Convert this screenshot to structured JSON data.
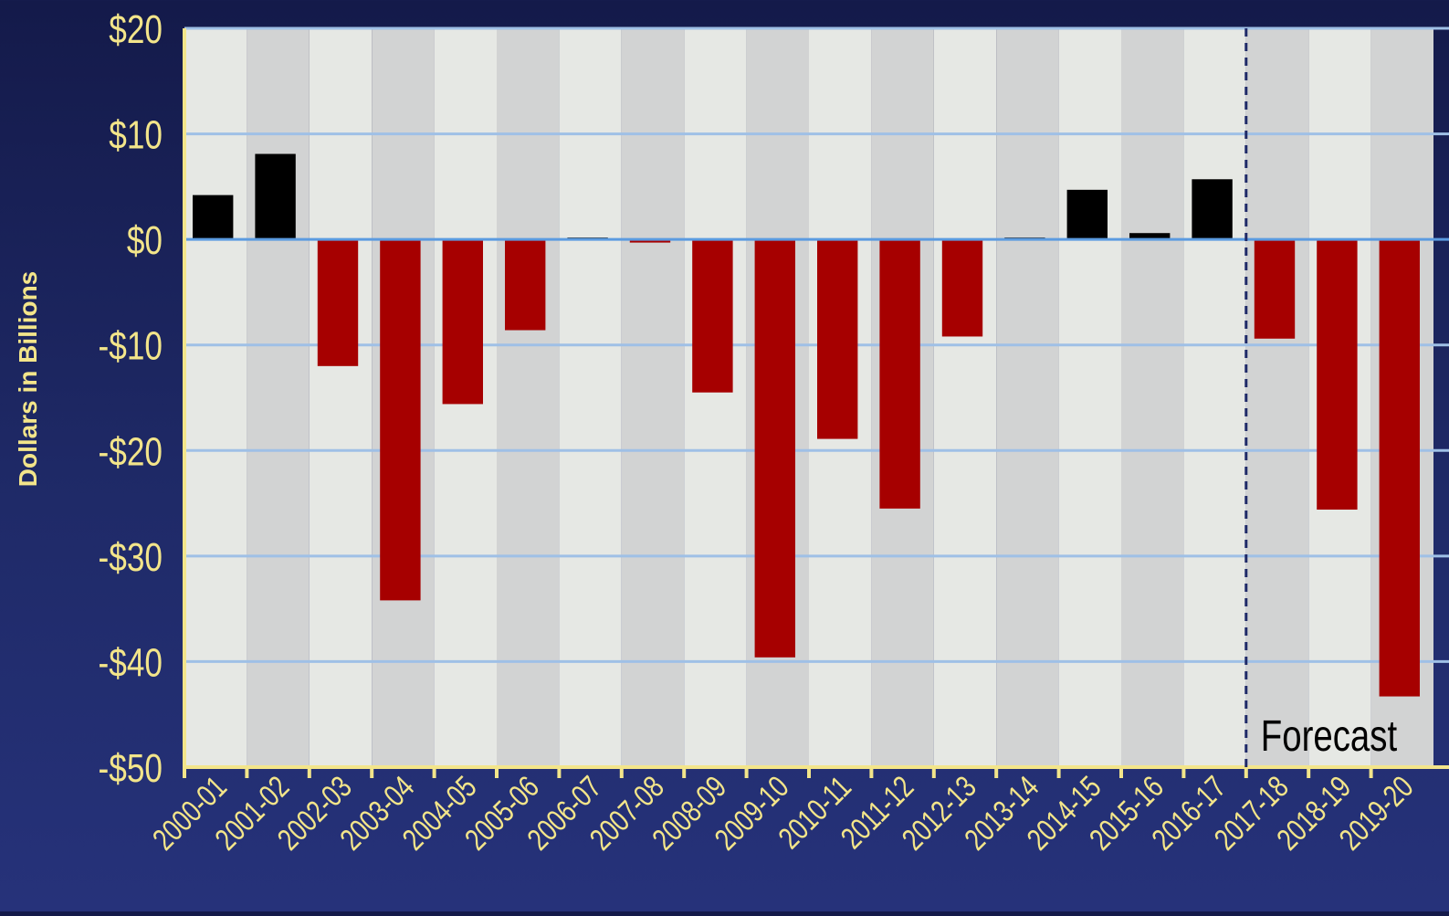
{
  "colors": {
    "axis_text": "#f3e58a",
    "negative_bar": "#a60000",
    "positive_bar": "#000000",
    "band_light": "#e6e8e4",
    "band_dark": "#d2d3d3",
    "gridline": "#9fc0e6",
    "zero_line": "#5b9be0",
    "axis_line": "#f3e58a",
    "forecast_line": "#1f2a68"
  },
  "chart_data": {
    "type": "bar",
    "ylabel": "Dollars in Billions",
    "ylim": [
      -50,
      20
    ],
    "yticks": [
      20,
      10,
      0,
      -10,
      -20,
      -30,
      -40,
      -50
    ],
    "ytick_labels": [
      "$20",
      "$10",
      "$0",
      "-$10",
      "-$20",
      "-$30",
      "-$40",
      "-$50"
    ],
    "grid": true,
    "categories": [
      "2000-01",
      "2001-02",
      "2002-03",
      "2003-04",
      "2004-05",
      "2005-06",
      "2006-07",
      "2007-08",
      "2008-09",
      "2009-10",
      "2010-11",
      "2011-12",
      "2012-13",
      "2013-14",
      "2014-15",
      "2015-16",
      "2016-17",
      "2017-18",
      "2018-19",
      "2019-20"
    ],
    "values": [
      4.2,
      8.1,
      -12.0,
      -34.2,
      -15.6,
      -8.6,
      0.1,
      -0.3,
      -14.5,
      -39.6,
      -18.9,
      -25.5,
      -9.2,
      0.1,
      4.7,
      0.6,
      5.7,
      -9.4,
      -25.6,
      -43.3
    ],
    "annotations": [
      {
        "text": "Forecast",
        "starts_at_category": "2017-18"
      }
    ]
  }
}
